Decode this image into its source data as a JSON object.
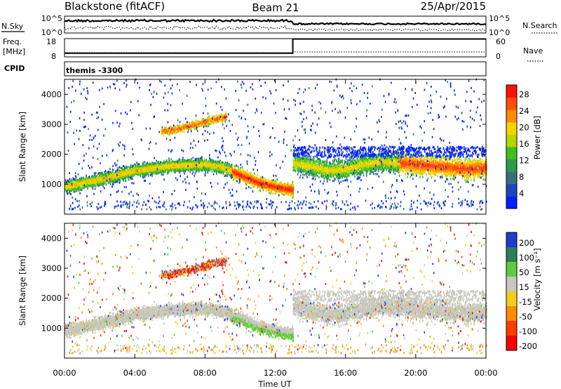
{
  "header": {
    "station": "Blackstone (fitACF)",
    "beam": "Beam 21",
    "date": "25/Apr/2015"
  },
  "top_panel": {
    "left_label": "N.Sky",
    "left_ticks": [
      "10^5",
      "10^0"
    ],
    "right_ticks": [
      "10^5",
      "10^0"
    ],
    "right_label": "N.Search",
    "freq_label_1": "Freq.",
    "freq_label_2": "[MHz]",
    "freq_ticks": [
      "18",
      "8"
    ],
    "nave_ticks": [
      "60",
      "0"
    ],
    "nave_label": "Nave",
    "cpid_label": "CPID",
    "cpid_value": "themis -3300",
    "freq_before_switch": 10,
    "freq_after_switch": 17.8,
    "switch_time_hours": 13.0
  },
  "chart_data": [
    {
      "type": "heatmap",
      "name": "power",
      "ylabel": "Slant Range [km]",
      "yticks": [
        "1000",
        "2000",
        "3000",
        "4000"
      ],
      "ylim": [
        0,
        4500
      ],
      "xlim": [
        0,
        24
      ],
      "colorbar_label": "Power [dB]",
      "colorbar_ticks": [
        "4",
        "8",
        "12",
        "16",
        "20",
        "24",
        "28"
      ],
      "colors": [
        "#0020ff",
        "#1f45c0",
        "#33707e",
        "#2f9a4a",
        "#3dbf22",
        "#b8d600",
        "#ffd000",
        "#ff8c00",
        "#ff5000",
        "#ff1000"
      ],
      "bands": [
        {
          "x": [
            0,
            2,
            4,
            6,
            8,
            9,
            10,
            11,
            12,
            13
          ],
          "center": [
            900,
            1150,
            1450,
            1600,
            1650,
            1550,
            1300,
            1050,
            900,
            800
          ],
          "width": 350
        },
        {
          "x": [
            13,
            14,
            15,
            16,
            17,
            18,
            19,
            20,
            21,
            22,
            23,
            24
          ],
          "center": [
            1700,
            1600,
            1450,
            1500,
            1650,
            1750,
            1700,
            1650,
            1600,
            1550,
            1500,
            1550
          ],
          "width": 550
        },
        {
          "x": [
            5.5,
            6.5,
            7.5,
            8.5,
            9.2
          ],
          "center": [
            2750,
            2850,
            3000,
            3150,
            3250
          ],
          "width": 220
        }
      ]
    },
    {
      "type": "heatmap",
      "name": "velocity",
      "ylabel": "Slant Range [km]",
      "yticks": [
        "1000",
        "2000",
        "3000",
        "4000"
      ],
      "ylim": [
        0,
        4500
      ],
      "xlim": [
        0,
        24
      ],
      "colorbar_label": "Velocity [m s⁻¹]",
      "colorbar_ticks": [
        "200",
        "100",
        "50",
        "15",
        "-15",
        "-50",
        "-100",
        "-200"
      ],
      "colors": [
        "#1a3ed0",
        "#2d7f5a",
        "#5fcc3a",
        "#c8c8c0",
        "#f0cf1a",
        "#ff8c00",
        "#ff3b00",
        "#ff0000"
      ],
      "xticks": [
        "00:00",
        "04:00",
        "08:00",
        "12:00",
        "16:00",
        "20:00",
        "00:00"
      ],
      "xlabel": "Time UT"
    }
  ]
}
